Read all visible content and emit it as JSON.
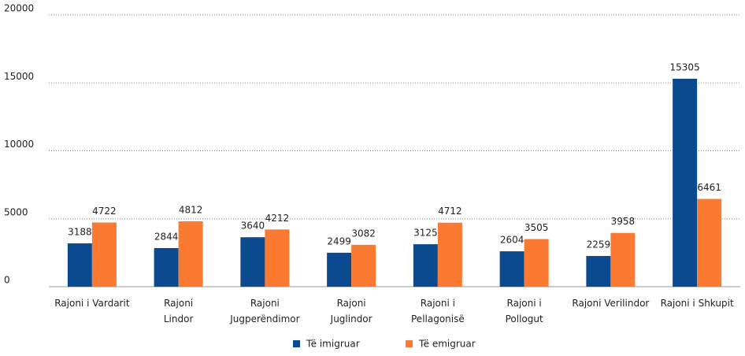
{
  "chart_data": {
    "type": "bar",
    "categories": [
      [
        "Rajoni i Vardarit"
      ],
      [
        "Rajoni",
        "Lindor"
      ],
      [
        "Rajoni",
        "Jugperëndimor"
      ],
      [
        "Rajoni",
        "Juglindor"
      ],
      [
        "Rajoni i",
        "Pellagonisë"
      ],
      [
        "Rajoni i",
        "Pollogut"
      ],
      [
        "Rajoni Verilindor"
      ],
      [
        "Rajoni i Shkupit"
      ]
    ],
    "series": [
      {
        "name": "Të imigruar",
        "color": "#0b4a8f",
        "values": [
          3188,
          2844,
          3640,
          2499,
          3125,
          2604,
          2259,
          15305
        ]
      },
      {
        "name": "Të emigruar",
        "color": "#f97a30",
        "values": [
          4722,
          4812,
          4212,
          3082,
          4712,
          3505,
          3958,
          6461
        ]
      }
    ],
    "ylim": [
      0,
      20000
    ],
    "yticks": [
      0,
      5000,
      10000,
      15000,
      20000
    ],
    "grid": true,
    "legend": "bottom"
  }
}
